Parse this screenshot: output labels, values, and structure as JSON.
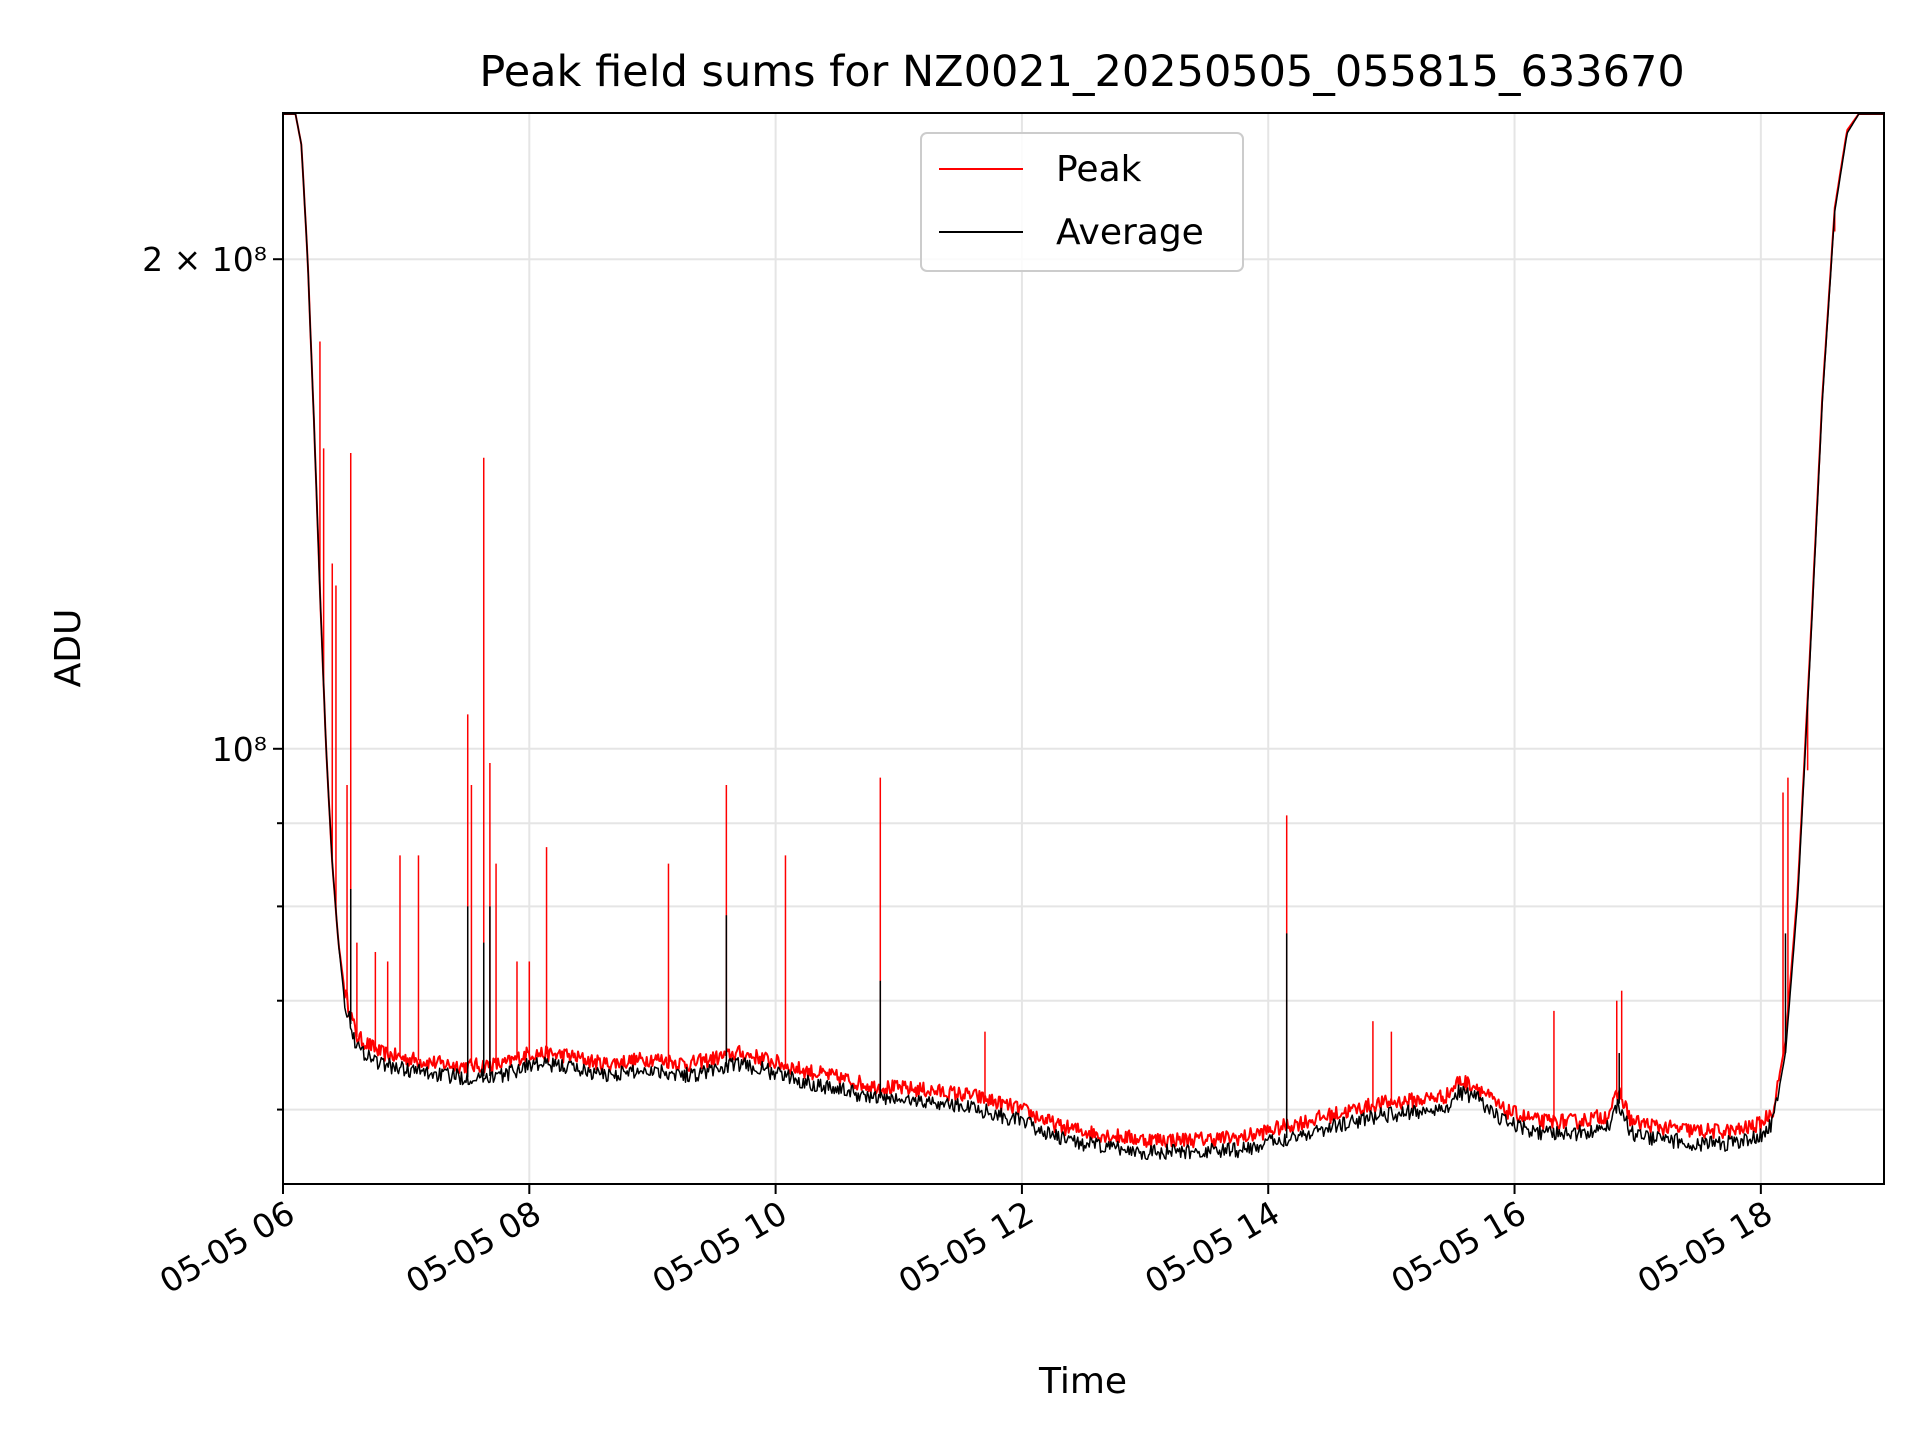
{
  "chart_data": {
    "type": "line",
    "title": "Peak field sums for NZ0021_20250505_055815_633670",
    "xlabel": "Time",
    "ylabel": "ADU",
    "y_scale": "log",
    "ylim": [
      54000000,
      246000000
    ],
    "xlim": [
      "2025-05-05 06:00",
      "2025-05-05 19:00"
    ],
    "grid": true,
    "legend_position": "upper center",
    "x_ticks": [
      "05-05 06",
      "05-05 08",
      "05-05 10",
      "05-05 12",
      "05-05 14",
      "05-05 16",
      "05-05 18"
    ],
    "y_ticks": [
      {
        "value": 200000000,
        "label": "2 × 10⁸"
      },
      {
        "value": 100000000,
        "label": "10⁸"
      }
    ],
    "x_unit": "hours (UTC, 2025-05-05)",
    "series": [
      {
        "name": "Peak",
        "color": "#ff0000",
        "points": [
          [
            6.0,
            246000000
          ],
          [
            6.1,
            246000000
          ],
          [
            6.15,
            235000000
          ],
          [
            6.2,
            200000000
          ],
          [
            6.25,
            160000000
          ],
          [
            6.3,
            125000000
          ],
          [
            6.35,
            100000000
          ],
          [
            6.4,
            85000000
          ],
          [
            6.45,
            76000000
          ],
          [
            6.5,
            71000000
          ],
          [
            6.6,
            66500000
          ],
          [
            6.8,
            65000000
          ],
          [
            7.0,
            64500000
          ],
          [
            7.3,
            64000000
          ],
          [
            7.5,
            63800000
          ],
          [
            7.8,
            64000000
          ],
          [
            8.0,
            65000000
          ],
          [
            8.3,
            64800000
          ],
          [
            8.6,
            64000000
          ],
          [
            9.0,
            64500000
          ],
          [
            9.3,
            64000000
          ],
          [
            9.5,
            64500000
          ],
          [
            9.7,
            65000000
          ],
          [
            9.9,
            64500000
          ],
          [
            10.2,
            63500000
          ],
          [
            10.5,
            62800000
          ],
          [
            10.8,
            62000000
          ],
          [
            11.2,
            61700000
          ],
          [
            11.6,
            61200000
          ],
          [
            12.0,
            60000000
          ],
          [
            12.3,
            58600000
          ],
          [
            12.6,
            58000000
          ],
          [
            13.0,
            57500000
          ],
          [
            13.4,
            57500000
          ],
          [
            13.8,
            57700000
          ],
          [
            14.1,
            58500000
          ],
          [
            14.5,
            59500000
          ],
          [
            14.9,
            60500000
          ],
          [
            15.2,
            60800000
          ],
          [
            15.45,
            61200000
          ],
          [
            15.55,
            62500000
          ],
          [
            15.7,
            62000000
          ],
          [
            15.9,
            60000000
          ],
          [
            16.2,
            59000000
          ],
          [
            16.5,
            59000000
          ],
          [
            16.75,
            59500000
          ],
          [
            16.85,
            61500000
          ],
          [
            16.95,
            59000000
          ],
          [
            17.2,
            58500000
          ],
          [
            17.5,
            58200000
          ],
          [
            17.8,
            58200000
          ],
          [
            18.0,
            58800000
          ],
          [
            18.1,
            60000000
          ],
          [
            18.2,
            66000000
          ],
          [
            18.3,
            82000000
          ],
          [
            18.4,
            115000000
          ],
          [
            18.5,
            165000000
          ],
          [
            18.6,
            215000000
          ],
          [
            18.7,
            240000000
          ],
          [
            18.8,
            246000000
          ],
          [
            19.0,
            246000000
          ]
        ],
        "spikes": [
          [
            6.3,
            178000000
          ],
          [
            6.33,
            153000000
          ],
          [
            6.4,
            130000000
          ],
          [
            6.43,
            126000000
          ],
          [
            6.52,
            95000000
          ],
          [
            6.55,
            152000000
          ],
          [
            6.6,
            76000000
          ],
          [
            6.75,
            75000000
          ],
          [
            6.85,
            74000000
          ],
          [
            6.95,
            86000000
          ],
          [
            7.1,
            86000000
          ],
          [
            7.5,
            105000000
          ],
          [
            7.53,
            95000000
          ],
          [
            7.63,
            151000000
          ],
          [
            7.68,
            98000000
          ],
          [
            7.73,
            85000000
          ],
          [
            7.9,
            74000000
          ],
          [
            8.0,
            74000000
          ],
          [
            8.14,
            87000000
          ],
          [
            9.13,
            85000000
          ],
          [
            9.6,
            95000000
          ],
          [
            10.08,
            86000000
          ],
          [
            10.85,
            96000000
          ],
          [
            11.7,
            67000000
          ],
          [
            14.15,
            91000000
          ],
          [
            14.85,
            68000000
          ],
          [
            15.0,
            67000000
          ],
          [
            16.32,
            69000000
          ],
          [
            16.83,
            70000000
          ],
          [
            16.87,
            71000000
          ],
          [
            18.18,
            94000000
          ],
          [
            18.22,
            96000000
          ],
          [
            18.38,
            97000000
          ],
          [
            18.6,
            208000000
          ]
        ]
      },
      {
        "name": "Average",
        "color": "#000000",
        "points": [
          [
            6.0,
            246000000
          ],
          [
            6.1,
            246000000
          ],
          [
            6.15,
            235000000
          ],
          [
            6.2,
            200000000
          ],
          [
            6.25,
            160000000
          ],
          [
            6.3,
            125000000
          ],
          [
            6.35,
            100000000
          ],
          [
            6.4,
            85000000
          ],
          [
            6.45,
            76000000
          ],
          [
            6.5,
            70000000
          ],
          [
            6.6,
            65500000
          ],
          [
            6.8,
            64000000
          ],
          [
            7.0,
            63500000
          ],
          [
            7.3,
            63000000
          ],
          [
            7.5,
            62800000
          ],
          [
            7.8,
            63000000
          ],
          [
            8.0,
            64000000
          ],
          [
            8.3,
            63800000
          ],
          [
            8.6,
            63000000
          ],
          [
            9.0,
            63500000
          ],
          [
            9.3,
            63000000
          ],
          [
            9.5,
            63500000
          ],
          [
            9.7,
            64000000
          ],
          [
            9.9,
            63500000
          ],
          [
            10.2,
            62500000
          ],
          [
            10.5,
            61800000
          ],
          [
            10.8,
            61000000
          ],
          [
            11.2,
            60700000
          ],
          [
            11.6,
            60200000
          ],
          [
            12.0,
            59000000
          ],
          [
            12.3,
            57600000
          ],
          [
            12.6,
            57000000
          ],
          [
            13.0,
            56500000
          ],
          [
            13.4,
            56500000
          ],
          [
            13.8,
            56700000
          ],
          [
            14.1,
            57500000
          ],
          [
            14.5,
            58500000
          ],
          [
            14.9,
            59500000
          ],
          [
            15.2,
            59800000
          ],
          [
            15.45,
            60200000
          ],
          [
            15.55,
            61500000
          ],
          [
            15.7,
            61000000
          ],
          [
            15.9,
            59000000
          ],
          [
            16.2,
            58000000
          ],
          [
            16.5,
            58000000
          ],
          [
            16.75,
            58500000
          ],
          [
            16.85,
            60500000
          ],
          [
            16.95,
            58000000
          ],
          [
            17.2,
            57500000
          ],
          [
            17.5,
            57200000
          ],
          [
            17.8,
            57200000
          ],
          [
            18.0,
            57800000
          ],
          [
            18.1,
            59000000
          ],
          [
            18.2,
            65000000
          ],
          [
            18.3,
            81000000
          ],
          [
            18.4,
            114000000
          ],
          [
            18.5,
            164000000
          ],
          [
            18.6,
            214000000
          ],
          [
            18.7,
            239000000
          ],
          [
            18.8,
            246000000
          ],
          [
            19.0,
            246000000
          ]
        ],
        "spikes": [
          [
            6.55,
            82000000
          ],
          [
            7.5,
            80000000
          ],
          [
            7.63,
            76000000
          ],
          [
            7.68,
            80000000
          ],
          [
            9.6,
            79000000
          ],
          [
            10.85,
            72000000
          ],
          [
            14.15,
            77000000
          ],
          [
            16.85,
            65000000
          ],
          [
            18.2,
            77000000
          ]
        ]
      }
    ]
  }
}
